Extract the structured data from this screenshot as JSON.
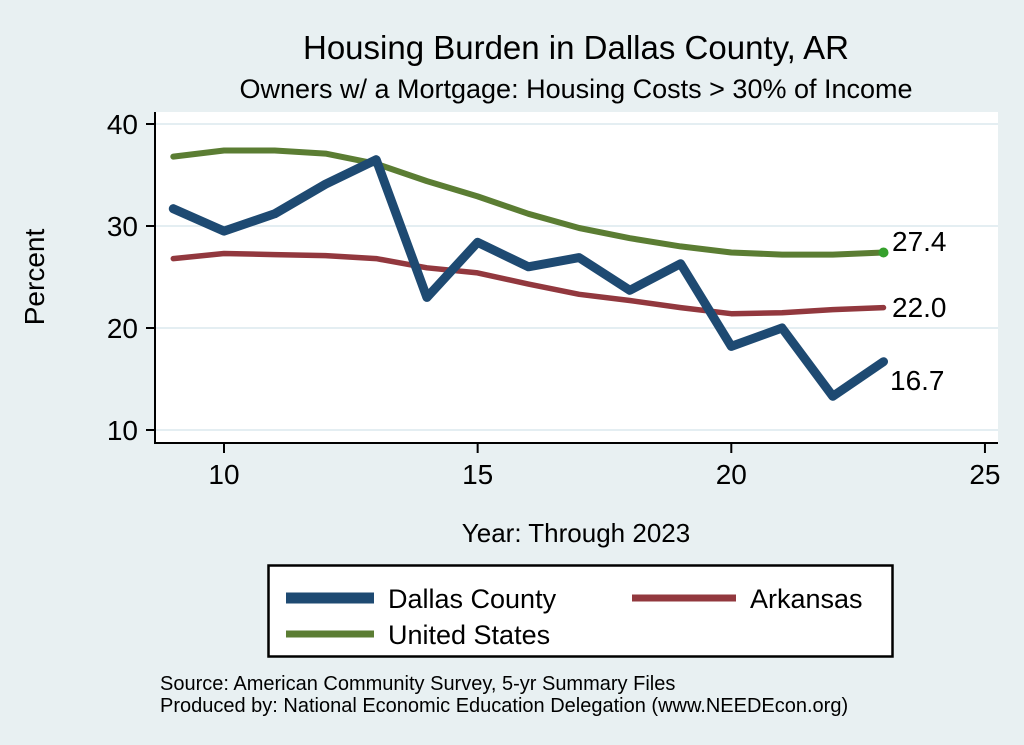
{
  "style": {
    "background": "#e8f0f2",
    "plot_background": "#ffffff",
    "title_color": "#203a63",
    "grid_color": "#dce9ee",
    "axis_color": "#000000",
    "legend_border_color": "#000000",
    "end_dot_color": "#35a02c"
  },
  "footer": {
    "source": "Source: American Community Survey, 5-yr Summary Files",
    "produced_by": "Produced by: National Economic Education Delegation (www.NEEDEcon.org)"
  },
  "chart_data": {
    "type": "line",
    "title": "Housing Burden in Dallas County, AR",
    "subtitle": "Owners w/ a Mortgage: Housing Costs > 30% of Income",
    "xlabel": "Year: Through 2023",
    "ylabel": "Percent",
    "x": [
      9,
      10,
      11,
      12,
      13,
      14,
      15,
      16,
      17,
      18,
      19,
      20,
      21,
      22,
      23
    ],
    "xticks": [
      "10",
      "15",
      "20",
      "25"
    ],
    "xtick_values": [
      10,
      15,
      20,
      25
    ],
    "yticks": [
      "10",
      "20",
      "30",
      "40"
    ],
    "ytick_values": [
      10,
      20,
      30,
      40
    ],
    "xlim": [
      8.6,
      25.3
    ],
    "ylim": [
      8.7,
      41.3
    ],
    "grid": true,
    "legend_position": "bottom",
    "series": [
      {
        "name": "Dallas County",
        "color": "#1e4a72",
        "stroke_width": 9,
        "end_label": "16.7",
        "end_dot": false,
        "values": [
          31.7,
          29.5,
          31.2,
          34.1,
          36.5,
          23.0,
          28.4,
          26.0,
          26.9,
          23.7,
          26.3,
          18.2,
          20.0,
          13.3,
          16.7
        ]
      },
      {
        "name": "Arkansas",
        "color": "#92383e",
        "stroke_width": 5.5,
        "end_label": "22.0",
        "end_dot": false,
        "values": [
          26.8,
          27.3,
          27.2,
          27.1,
          26.8,
          25.9,
          25.4,
          24.3,
          23.3,
          22.7,
          22.0,
          21.4,
          21.5,
          21.8,
          22.0
        ]
      },
      {
        "name": "United States",
        "color": "#5b7d33",
        "stroke_width": 6,
        "end_label": "27.4",
        "end_dot": true,
        "values": [
          36.8,
          37.4,
          37.4,
          37.1,
          36.1,
          34.4,
          32.9,
          31.2,
          29.8,
          28.8,
          28.0,
          27.4,
          27.2,
          27.2,
          27.4
        ]
      }
    ]
  }
}
